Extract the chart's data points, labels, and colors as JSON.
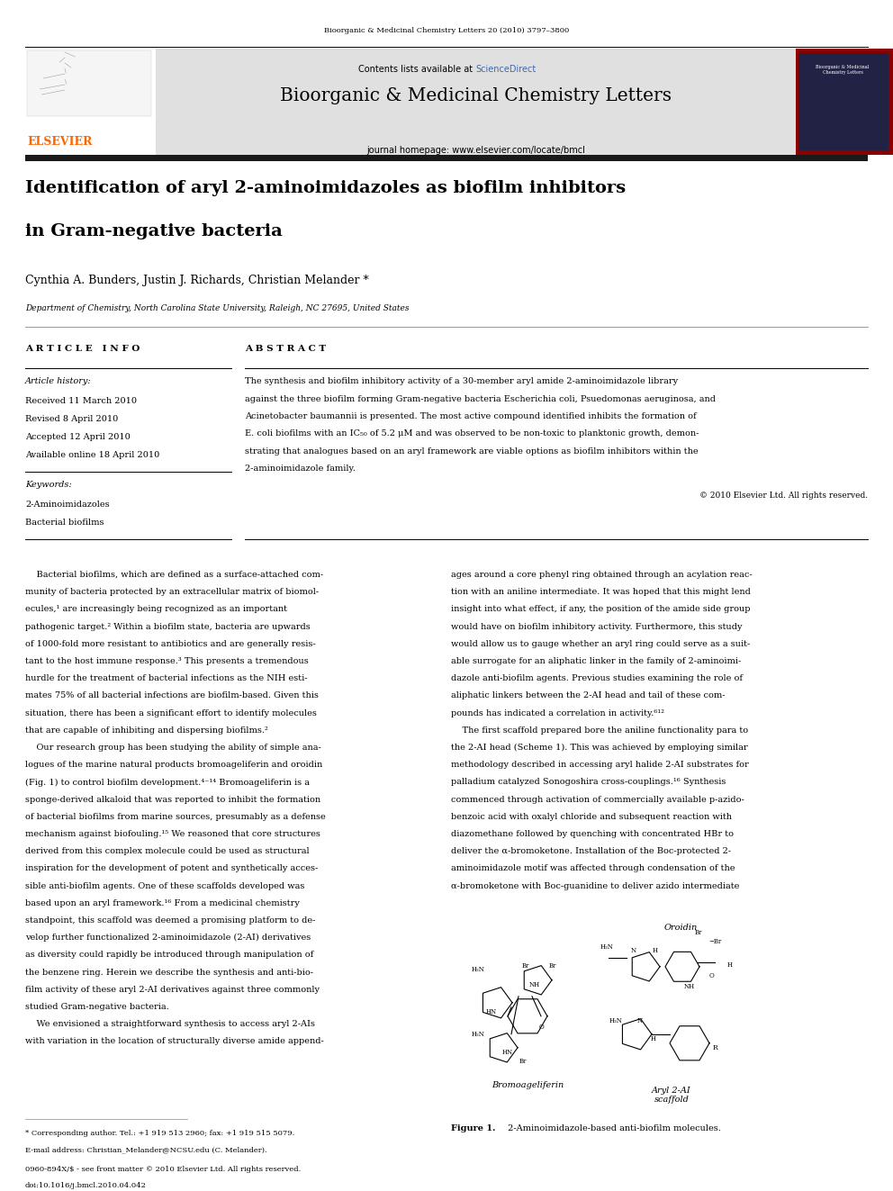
{
  "page_width": 9.92,
  "page_height": 13.23,
  "dpi": 100,
  "bg_color": "#ffffff",
  "header_journal_text": "Bioorganic & Medicinal Chemistry Letters 20 (2010) 3797–3800",
  "journal_name": "Bioorganic & Medicinal Chemistry Letters",
  "journal_homepage": "journal homepage: www.elsevier.com/locate/bmcl",
  "contents_text": "Contents lists available at ",
  "sciencedirect_text": "ScienceDirect",
  "sciencedirect_color": "#4169aa",
  "elsevier_color": "#ff6600",
  "elsevier_text": "ELSEVIER",
  "header_bg": "#e0e0e0",
  "dark_bar_color": "#1a1a1a",
  "article_title_line1": "Identification of aryl 2-aminoimidazoles as biofilm inhibitors",
  "article_title_line2": "in Gram-negative bacteria",
  "authors": "Cynthia A. Bunders, Justin J. Richards, Christian Melander *",
  "affiliation": "Department of Chemistry, North Carolina State University, Raleigh, NC 27695, United States",
  "article_info_title": "A R T I C L E   I N F O",
  "abstract_title": "A B S T R A C T",
  "article_history_label": "Article history:",
  "received": "Received 11 March 2010",
  "revised": "Revised 8 April 2010",
  "accepted": "Accepted 12 April 2010",
  "available": "Available online 18 April 2010",
  "keywords_label": "Keywords:",
  "keyword1": "2-Aminoimidazoles",
  "keyword2": "Bacterial biofilms",
  "abstract_lines": [
    "The synthesis and biofilm inhibitory activity of a 30-member aryl amide 2-aminoimidazole library",
    "against the three biofilm forming Gram-negative bacteria Escherichia coli, Psuedomonas aeruginosa, and",
    "Acinetobacter baumannii is presented. The most active compound identified inhibits the formation of",
    "E. coli biofilms with an IC₅₀ of 5.2 μM and was observed to be non-toxic to planktonic growth, demon-",
    "strating that analogues based on an aryl framework are viable options as biofilm inhibitors within the",
    "2-aminoimidazole family."
  ],
  "copyright": "© 2010 Elsevier Ltd. All rights reserved.",
  "body1_lines": [
    "    Bacterial biofilms, which are defined as a surface-attached com-",
    "munity of bacteria protected by an extracellular matrix of biomol-",
    "ecules,¹ are increasingly being recognized as an important",
    "pathogenic target.² Within a biofilm state, bacteria are upwards",
    "of 1000-fold more resistant to antibiotics and are generally resis-",
    "tant to the host immune response.³ This presents a tremendous",
    "hurdle for the treatment of bacterial infections as the NIH esti-",
    "mates 75% of all bacterial infections are biofilm-based. Given this",
    "situation, there has been a significant effort to identify molecules",
    "that are capable of inhibiting and dispersing biofilms.²",
    "    Our research group has been studying the ability of simple ana-",
    "logues of the marine natural products bromoageliferin and oroidin",
    "(Fig. 1) to control biofilm development.⁴⁻¹⁴ Bromoageliferin is a",
    "sponge-derived alkaloid that was reported to inhibit the formation",
    "of bacterial biofilms from marine sources, presumably as a defense",
    "mechanism against biofouling.¹⁵ We reasoned that core structures",
    "derived from this complex molecule could be used as structural",
    "inspiration for the development of potent and synthetically acces-",
    "sible anti-biofilm agents. One of these scaffolds developed was",
    "based upon an aryl framework.¹⁶ From a medicinal chemistry",
    "standpoint, this scaffold was deemed a promising platform to de-",
    "velop further functionalized 2-aminoimidazole (2-AI) derivatives",
    "as diversity could rapidly be introduced through manipulation of",
    "the benzene ring. Herein we describe the synthesis and anti-bio-",
    "film activity of these aryl 2-AI derivatives against three commonly",
    "studied Gram-negative bacteria.",
    "    We envisioned a straightforward synthesis to access aryl 2-AIs",
    "with variation in the location of structurally diverse amide append-"
  ],
  "body2_lines": [
    "ages around a core phenyl ring obtained through an acylation reac-",
    "tion with an aniline intermediate. It was hoped that this might lend",
    "insight into what effect, if any, the position of the amide side group",
    "would have on biofilm inhibitory activity. Furthermore, this study",
    "would allow us to gauge whether an aryl ring could serve as a suit-",
    "able surrogate for an aliphatic linker in the family of 2-aminoimi-",
    "dazole anti-biofilm agents. Previous studies examining the role of",
    "aliphatic linkers between the 2-AI head and tail of these com-",
    "pounds has indicated a correlation in activity.⁶¹²",
    "    The first scaffold prepared bore the aniline functionality para to",
    "the 2-AI head (Scheme 1). This was achieved by employing similar",
    "methodology described in accessing aryl halide 2-AI substrates for",
    "palladium catalyzed Sonogoshira cross-couplings.¹⁶ Synthesis",
    "commenced through activation of commercially available p-azido-",
    "benzoic acid with oxalyl chloride and subsequent reaction with",
    "diazomethane followed by quenching with concentrated HBr to",
    "deliver the α-bromoketone. Installation of the Boc-protected 2-",
    "aminoimidazole motif was affected through condensation of the",
    "α-bromoketone with Boc-guanidine to deliver azido intermediate"
  ],
  "footnote_star": "* Corresponding author. Tel.: +1 919 513 2960; fax: +1 919 515 5079.",
  "footnote_email": "E-mail address: Christian_Melander@NCSU.edu (C. Melander).",
  "footnote_copy": "0960-894X/$ - see front matter © 2010 Elsevier Ltd. All rights reserved.",
  "footnote_doi": "doi:10.1016/j.bmcl.2010.04.042",
  "fig1_bold": "Figure 1.",
  "fig1_rest": " 2-Aminoimidazole-based anti-biofilm molecules.",
  "fig_bromoageliferin": "Bromoageliferin",
  "fig_oroidin": "Oroidin",
  "fig_aryl": "Aryl 2-AI\nscaffold"
}
